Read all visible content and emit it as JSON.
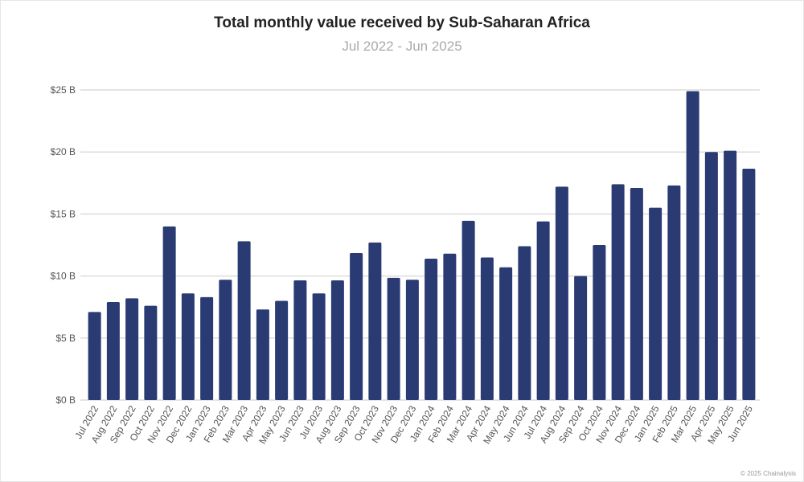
{
  "chart_data": {
    "type": "bar",
    "title": "Total monthly value received by Sub-Saharan Africa",
    "subtitle": "Jul 2022 - Jun 2025",
    "xlabel": "",
    "ylabel": "",
    "ylim": [
      0,
      25
    ],
    "yticks": [
      "$0 B",
      "$5 B",
      "$10 B",
      "$15 B",
      "$20 B",
      "$25 B"
    ],
    "ytick_values": [
      0,
      5,
      10,
      15,
      20,
      25
    ],
    "grid": true,
    "bar_color": "#2a3a72",
    "categories": [
      "Jul 2022",
      "Aug 2022",
      "Sep 2022",
      "Oct 2022",
      "Nov 2022",
      "Dec 2022",
      "Jan 2023",
      "Feb 2023",
      "Mar 2023",
      "Apr 2023",
      "May 2023",
      "Jun 2023",
      "Jul 2023",
      "Aug 2023",
      "Sep 2023",
      "Oct 2023",
      "Nov 2023",
      "Dec 2023",
      "Jan 2024",
      "Feb 2024",
      "Mar 2024",
      "Apr 2024",
      "May 2024",
      "Jun 2024",
      "Jul 2024",
      "Aug 2024",
      "Sep 2024",
      "Oct 2024",
      "Nov 2024",
      "Dec 2024",
      "Jan 2025",
      "Feb 2025",
      "Mar 2025",
      "Apr 2025",
      "May 2025",
      "Jun 2025"
    ],
    "values": [
      7.1,
      7.9,
      8.2,
      7.6,
      14.0,
      8.6,
      8.3,
      9.7,
      12.8,
      7.3,
      8.0,
      9.65,
      8.6,
      9.65,
      11.85,
      12.7,
      9.85,
      9.7,
      11.4,
      11.8,
      14.45,
      11.5,
      10.7,
      12.4,
      14.4,
      17.2,
      10.0,
      12.5,
      17.4,
      17.1,
      15.5,
      17.3,
      24.9,
      20.0,
      20.1,
      18.65
    ],
    "unit": "USD billions"
  },
  "footer": {
    "credit": "© 2025 Chainalysis"
  }
}
